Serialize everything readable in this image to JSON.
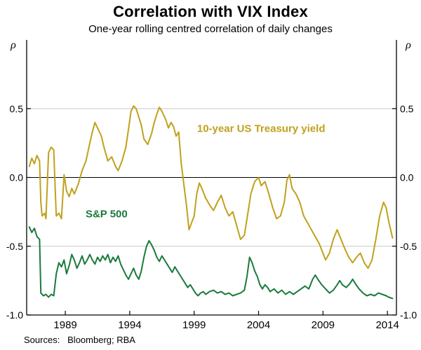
{
  "chart_data": {
    "type": "line",
    "title": "Correlation with VIX Index",
    "subtitle": "One-year rolling centred correlation of daily changes",
    "y_unit_label": "ρ",
    "source": "Sources:   Bloomberg; RBA",
    "xlim": [
      1986.0,
      2014.7
    ],
    "ylim": [
      -1.0,
      1.0
    ],
    "yticks": [
      0.5,
      0.0,
      -0.5,
      -1.0
    ],
    "ytick_labels": [
      "0.5",
      "0.0",
      "-0.5",
      "-1.0"
    ],
    "xticks": [
      1989,
      1994,
      1999,
      2004,
      2009,
      2014
    ],
    "xtick_labels": [
      "1989",
      "1994",
      "1999",
      "2004",
      "2009",
      "2014"
    ],
    "grid": "horizontal",
    "zero_line": true,
    "legend_position": "inline-labels",
    "colors": {
      "grid": "#c9c9c9",
      "axis": "#000000"
    },
    "series": [
      {
        "name": "10-year US Treasury yield",
        "color": "#c0a11c",
        "label_pos": {
          "x": 2004.2,
          "y": 0.33
        },
        "x": [
          1986.2,
          1986.4,
          1986.6,
          1986.8,
          1987.0,
          1987.1,
          1987.2,
          1987.4,
          1987.5,
          1987.7,
          1987.9,
          1988.1,
          1988.2,
          1988.3,
          1988.5,
          1988.7,
          1988.9,
          1989.1,
          1989.3,
          1989.5,
          1989.7,
          1990.0,
          1990.3,
          1990.6,
          1990.9,
          1991.1,
          1991.3,
          1991.5,
          1991.8,
          1992.0,
          1992.3,
          1992.6,
          1992.9,
          1993.1,
          1993.4,
          1993.7,
          1993.9,
          1994.1,
          1994.3,
          1994.5,
          1994.7,
          1994.9,
          1995.1,
          1995.4,
          1995.7,
          1995.9,
          1996.1,
          1996.3,
          1996.5,
          1996.8,
          1997.0,
          1997.2,
          1997.4,
          1997.6,
          1997.8,
          1998.0,
          1998.2,
          1998.4,
          1998.6,
          1998.8,
          1999.0,
          1999.2,
          1999.4,
          1999.6,
          1999.9,
          2000.2,
          2000.5,
          2000.8,
          2001.1,
          2001.4,
          2001.7,
          2002.0,
          2002.3,
          2002.6,
          2002.9,
          2003.1,
          2003.4,
          2003.7,
          2004.0,
          2004.2,
          2004.5,
          2004.8,
          2005.1,
          2005.4,
          2005.7,
          2006.0,
          2006.2,
          2006.4,
          2006.6,
          2006.9,
          2007.2,
          2007.5,
          2007.8,
          2008.1,
          2008.4,
          2008.7,
          2009.0,
          2009.2,
          2009.5,
          2009.8,
          2010.1,
          2010.4,
          2010.7,
          2011.0,
          2011.3,
          2011.6,
          2011.9,
          2012.2,
          2012.5,
          2012.8,
          2013.1,
          2013.4,
          2013.7,
          2013.9,
          2014.1,
          2014.4
        ],
        "y": [
          0.08,
          0.14,
          0.1,
          0.16,
          0.12,
          -0.18,
          -0.28,
          -0.26,
          -0.3,
          0.18,
          0.22,
          0.2,
          -0.05,
          -0.28,
          -0.26,
          -0.3,
          0.02,
          -0.1,
          -0.14,
          -0.08,
          -0.12,
          -0.05,
          0.05,
          0.12,
          0.25,
          0.33,
          0.4,
          0.36,
          0.3,
          0.22,
          0.12,
          0.15,
          0.08,
          0.05,
          0.12,
          0.22,
          0.35,
          0.48,
          0.52,
          0.5,
          0.44,
          0.38,
          0.28,
          0.24,
          0.32,
          0.4,
          0.46,
          0.51,
          0.48,
          0.42,
          0.36,
          0.4,
          0.37,
          0.3,
          0.33,
          0.1,
          -0.05,
          -0.2,
          -0.38,
          -0.33,
          -0.28,
          -0.12,
          -0.04,
          -0.08,
          -0.15,
          -0.2,
          -0.24,
          -0.18,
          -0.13,
          -0.22,
          -0.28,
          -0.25,
          -0.35,
          -0.45,
          -0.42,
          -0.3,
          -0.12,
          -0.03,
          0.0,
          -0.06,
          -0.03,
          -0.12,
          -0.22,
          -0.3,
          -0.28,
          -0.18,
          -0.02,
          0.02,
          -0.08,
          -0.12,
          -0.18,
          -0.28,
          -0.33,
          -0.38,
          -0.43,
          -0.48,
          -0.55,
          -0.6,
          -0.55,
          -0.45,
          -0.38,
          -0.45,
          -0.52,
          -0.58,
          -0.62,
          -0.58,
          -0.55,
          -0.62,
          -0.66,
          -0.6,
          -0.45,
          -0.28,
          -0.18,
          -0.22,
          -0.32,
          -0.44
        ]
      },
      {
        "name": "S&P 500",
        "color": "#1a7a3c",
        "label_pos": {
          "x": 1992.2,
          "y": -0.29
        },
        "x": [
          1986.2,
          1986.4,
          1986.6,
          1986.8,
          1987.0,
          1987.1,
          1987.3,
          1987.5,
          1987.7,
          1987.9,
          1988.1,
          1988.3,
          1988.5,
          1988.7,
          1988.9,
          1989.1,
          1989.3,
          1989.5,
          1989.7,
          1989.9,
          1990.1,
          1990.3,
          1990.5,
          1990.7,
          1990.9,
          1991.1,
          1991.3,
          1991.5,
          1991.7,
          1991.9,
          1992.1,
          1992.3,
          1992.5,
          1992.7,
          1992.9,
          1993.1,
          1993.3,
          1993.5,
          1993.7,
          1993.9,
          1994.1,
          1994.3,
          1994.5,
          1994.7,
          1994.9,
          1995.1,
          1995.3,
          1995.5,
          1995.7,
          1995.9,
          1996.1,
          1996.3,
          1996.5,
          1996.7,
          1996.9,
          1997.1,
          1997.3,
          1997.5,
          1997.7,
          1997.9,
          1998.1,
          1998.3,
          1998.5,
          1998.7,
          1998.9,
          1999.1,
          1999.3,
          1999.5,
          1999.7,
          1999.9,
          2000.2,
          2000.5,
          2000.8,
          2001.1,
          2001.4,
          2001.7,
          2002.0,
          2002.3,
          2002.6,
          2002.9,
          2003.1,
          2003.3,
          2003.5,
          2003.7,
          2003.9,
          2004.1,
          2004.3,
          2004.5,
          2004.7,
          2004.9,
          2005.2,
          2005.5,
          2005.8,
          2006.1,
          2006.4,
          2006.7,
          2007.0,
          2007.3,
          2007.6,
          2007.9,
          2008.2,
          2008.4,
          2008.6,
          2008.9,
          2009.2,
          2009.5,
          2009.8,
          2010.1,
          2010.3,
          2010.5,
          2010.8,
          2011.1,
          2011.3,
          2011.5,
          2011.8,
          2012.1,
          2012.4,
          2012.7,
          2013.0,
          2013.3,
          2013.6,
          2013.9,
          2014.1,
          2014.4
        ],
        "y": [
          -0.36,
          -0.4,
          -0.37,
          -0.43,
          -0.45,
          -0.84,
          -0.86,
          -0.85,
          -0.87,
          -0.85,
          -0.86,
          -0.7,
          -0.62,
          -0.65,
          -0.6,
          -0.7,
          -0.64,
          -0.56,
          -0.6,
          -0.66,
          -0.62,
          -0.57,
          -0.63,
          -0.6,
          -0.56,
          -0.6,
          -0.63,
          -0.58,
          -0.61,
          -0.57,
          -0.6,
          -0.56,
          -0.62,
          -0.58,
          -0.61,
          -0.57,
          -0.63,
          -0.67,
          -0.71,
          -0.74,
          -0.7,
          -0.66,
          -0.71,
          -0.74,
          -0.68,
          -0.58,
          -0.5,
          -0.46,
          -0.49,
          -0.53,
          -0.58,
          -0.61,
          -0.57,
          -0.6,
          -0.63,
          -0.66,
          -0.69,
          -0.65,
          -0.68,
          -0.71,
          -0.74,
          -0.77,
          -0.8,
          -0.78,
          -0.81,
          -0.84,
          -0.86,
          -0.84,
          -0.83,
          -0.85,
          -0.83,
          -0.82,
          -0.84,
          -0.83,
          -0.85,
          -0.84,
          -0.86,
          -0.85,
          -0.84,
          -0.82,
          -0.72,
          -0.58,
          -0.62,
          -0.68,
          -0.72,
          -0.78,
          -0.81,
          -0.78,
          -0.8,
          -0.83,
          -0.81,
          -0.84,
          -0.82,
          -0.85,
          -0.83,
          -0.85,
          -0.83,
          -0.81,
          -0.79,
          -0.81,
          -0.74,
          -0.71,
          -0.74,
          -0.78,
          -0.81,
          -0.84,
          -0.82,
          -0.78,
          -0.75,
          -0.78,
          -0.8,
          -0.77,
          -0.74,
          -0.77,
          -0.81,
          -0.84,
          -0.86,
          -0.85,
          -0.86,
          -0.84,
          -0.85,
          -0.86,
          -0.87,
          -0.88
        ]
      }
    ]
  }
}
